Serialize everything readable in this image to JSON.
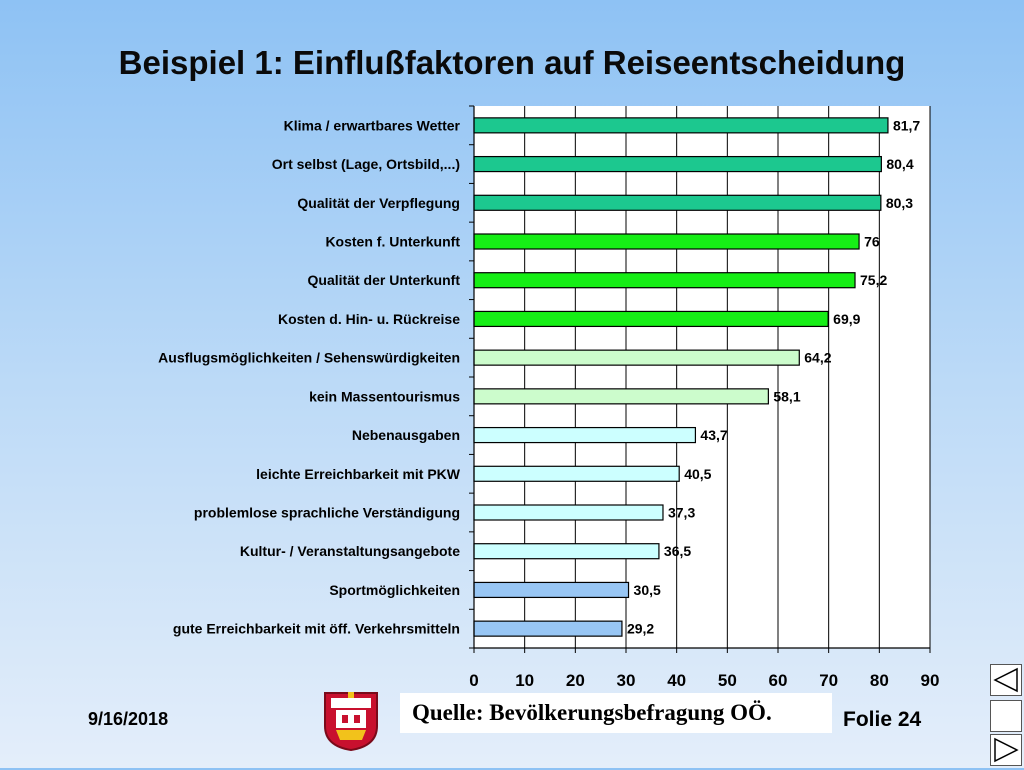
{
  "title": "Beispiel 1: Einflußfaktoren auf Reiseentscheidung",
  "footer": {
    "date": "9/16/2018",
    "source": "Quelle: Bevölkerungsbefragung OÖ.",
    "slide": "Folie 24"
  },
  "colors": {
    "teal": "#1cc88f",
    "green": "#16ee16",
    "lightgreen": "#ccfccc",
    "lightcyan": "#ccffff",
    "blue": "#98c6f4",
    "plot_bg": "#ffffff"
  },
  "chart_data": {
    "type": "bar",
    "orientation": "horizontal",
    "xlim": [
      0,
      90
    ],
    "xticks": [
      0,
      10,
      20,
      30,
      40,
      50,
      60,
      70,
      80,
      90
    ],
    "grid": true,
    "categories": [
      "Klima / erwartbares Wetter",
      "Ort selbst (Lage, Ortsbild,...)",
      "Qualität der Verpflegung",
      "Kosten f. Unterkunft",
      "Qualität der Unterkunft",
      "Kosten d. Hin- u. Rückreise",
      "Ausflugsmöglichkeiten / Sehenswürdigkeiten",
      "kein Massentourismus",
      "Nebenausgaben",
      "leichte Erreichbarkeit mit PKW",
      "problemlose sprachliche Verständigung",
      "Kultur- / Veranstaltungsangebote",
      "Sportmöglichkeiten",
      "gute Erreichbarkeit mit öff. Verkehrsmitteln"
    ],
    "values": [
      81.7,
      80.4,
      80.3,
      76,
      75.2,
      69.9,
      64.2,
      58.1,
      43.7,
      40.5,
      37.3,
      36.5,
      30.5,
      29.2
    ],
    "value_labels": [
      "81,7",
      "80,4",
      "80,3",
      "76",
      "75,2",
      "69,9",
      "64,2",
      "58,1",
      "43,7",
      "40,5",
      "37,3",
      "36,5",
      "30,5",
      "29,2"
    ],
    "bar_colors": [
      "teal",
      "teal",
      "teal",
      "green",
      "green",
      "green",
      "lightgreen",
      "lightgreen",
      "lightcyan",
      "lightcyan",
      "lightcyan",
      "lightcyan",
      "blue",
      "blue"
    ]
  }
}
